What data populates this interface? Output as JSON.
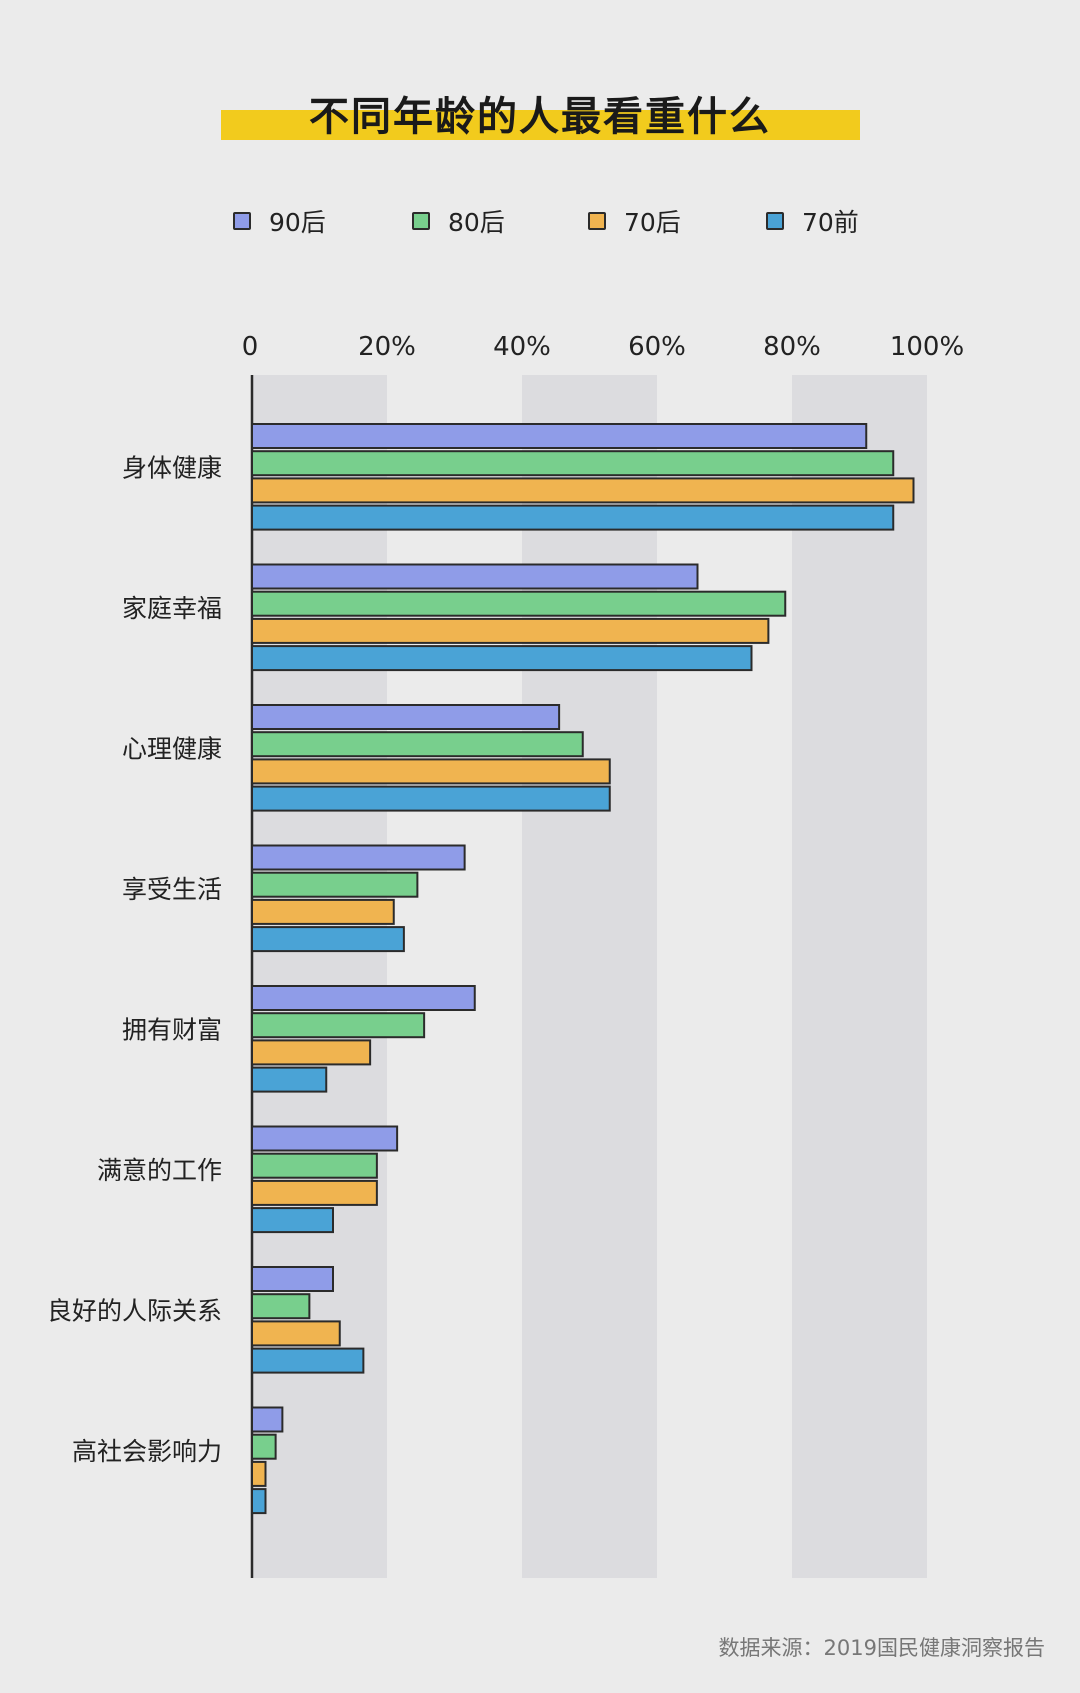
{
  "header": {
    "title": "不同年龄的人最看重什么"
  },
  "legend": [
    {
      "label": "90后",
      "color": "#8f9ce8"
    },
    {
      "label": "80后",
      "color": "#78cf8d"
    },
    {
      "label": "70后",
      "color": "#f0b450"
    },
    {
      "label": "70前",
      "color": "#4aa3d6"
    }
  ],
  "footer": {
    "source": "数据来源：2019国民健康洞察报告"
  },
  "chart_data": {
    "type": "bar",
    "orientation": "horizontal",
    "title": "不同年龄的人最看重什么",
    "xlabel": "",
    "ylabel": "",
    "xlim": [
      0,
      100
    ],
    "x_ticks": [
      "0",
      "20%",
      "40%",
      "60%",
      "80%",
      "100%"
    ],
    "grid": "alternating bands",
    "legend_position": "top",
    "categories": [
      "身体健康",
      "家庭幸福",
      "心理健康",
      "享受生活",
      "拥有财富",
      "满意的工作",
      "良好的人际关系",
      "高社会影响力"
    ],
    "series": [
      {
        "name": "90后",
        "color": "#8f9ce8",
        "values": [
          91,
          66,
          45.5,
          31.5,
          33,
          21.5,
          12,
          4.5
        ]
      },
      {
        "name": "80后",
        "color": "#78cf8d",
        "values": [
          95,
          79,
          49,
          24.5,
          25.5,
          18.5,
          8.5,
          3.5
        ]
      },
      {
        "name": "70后",
        "color": "#f0b450",
        "values": [
          98,
          76.5,
          53,
          21,
          17.5,
          18.5,
          13,
          2
        ]
      },
      {
        "name": "70前",
        "color": "#4aa3d6",
        "values": [
          95,
          74,
          53,
          22.5,
          11,
          12,
          16.5,
          2
        ]
      }
    ]
  }
}
